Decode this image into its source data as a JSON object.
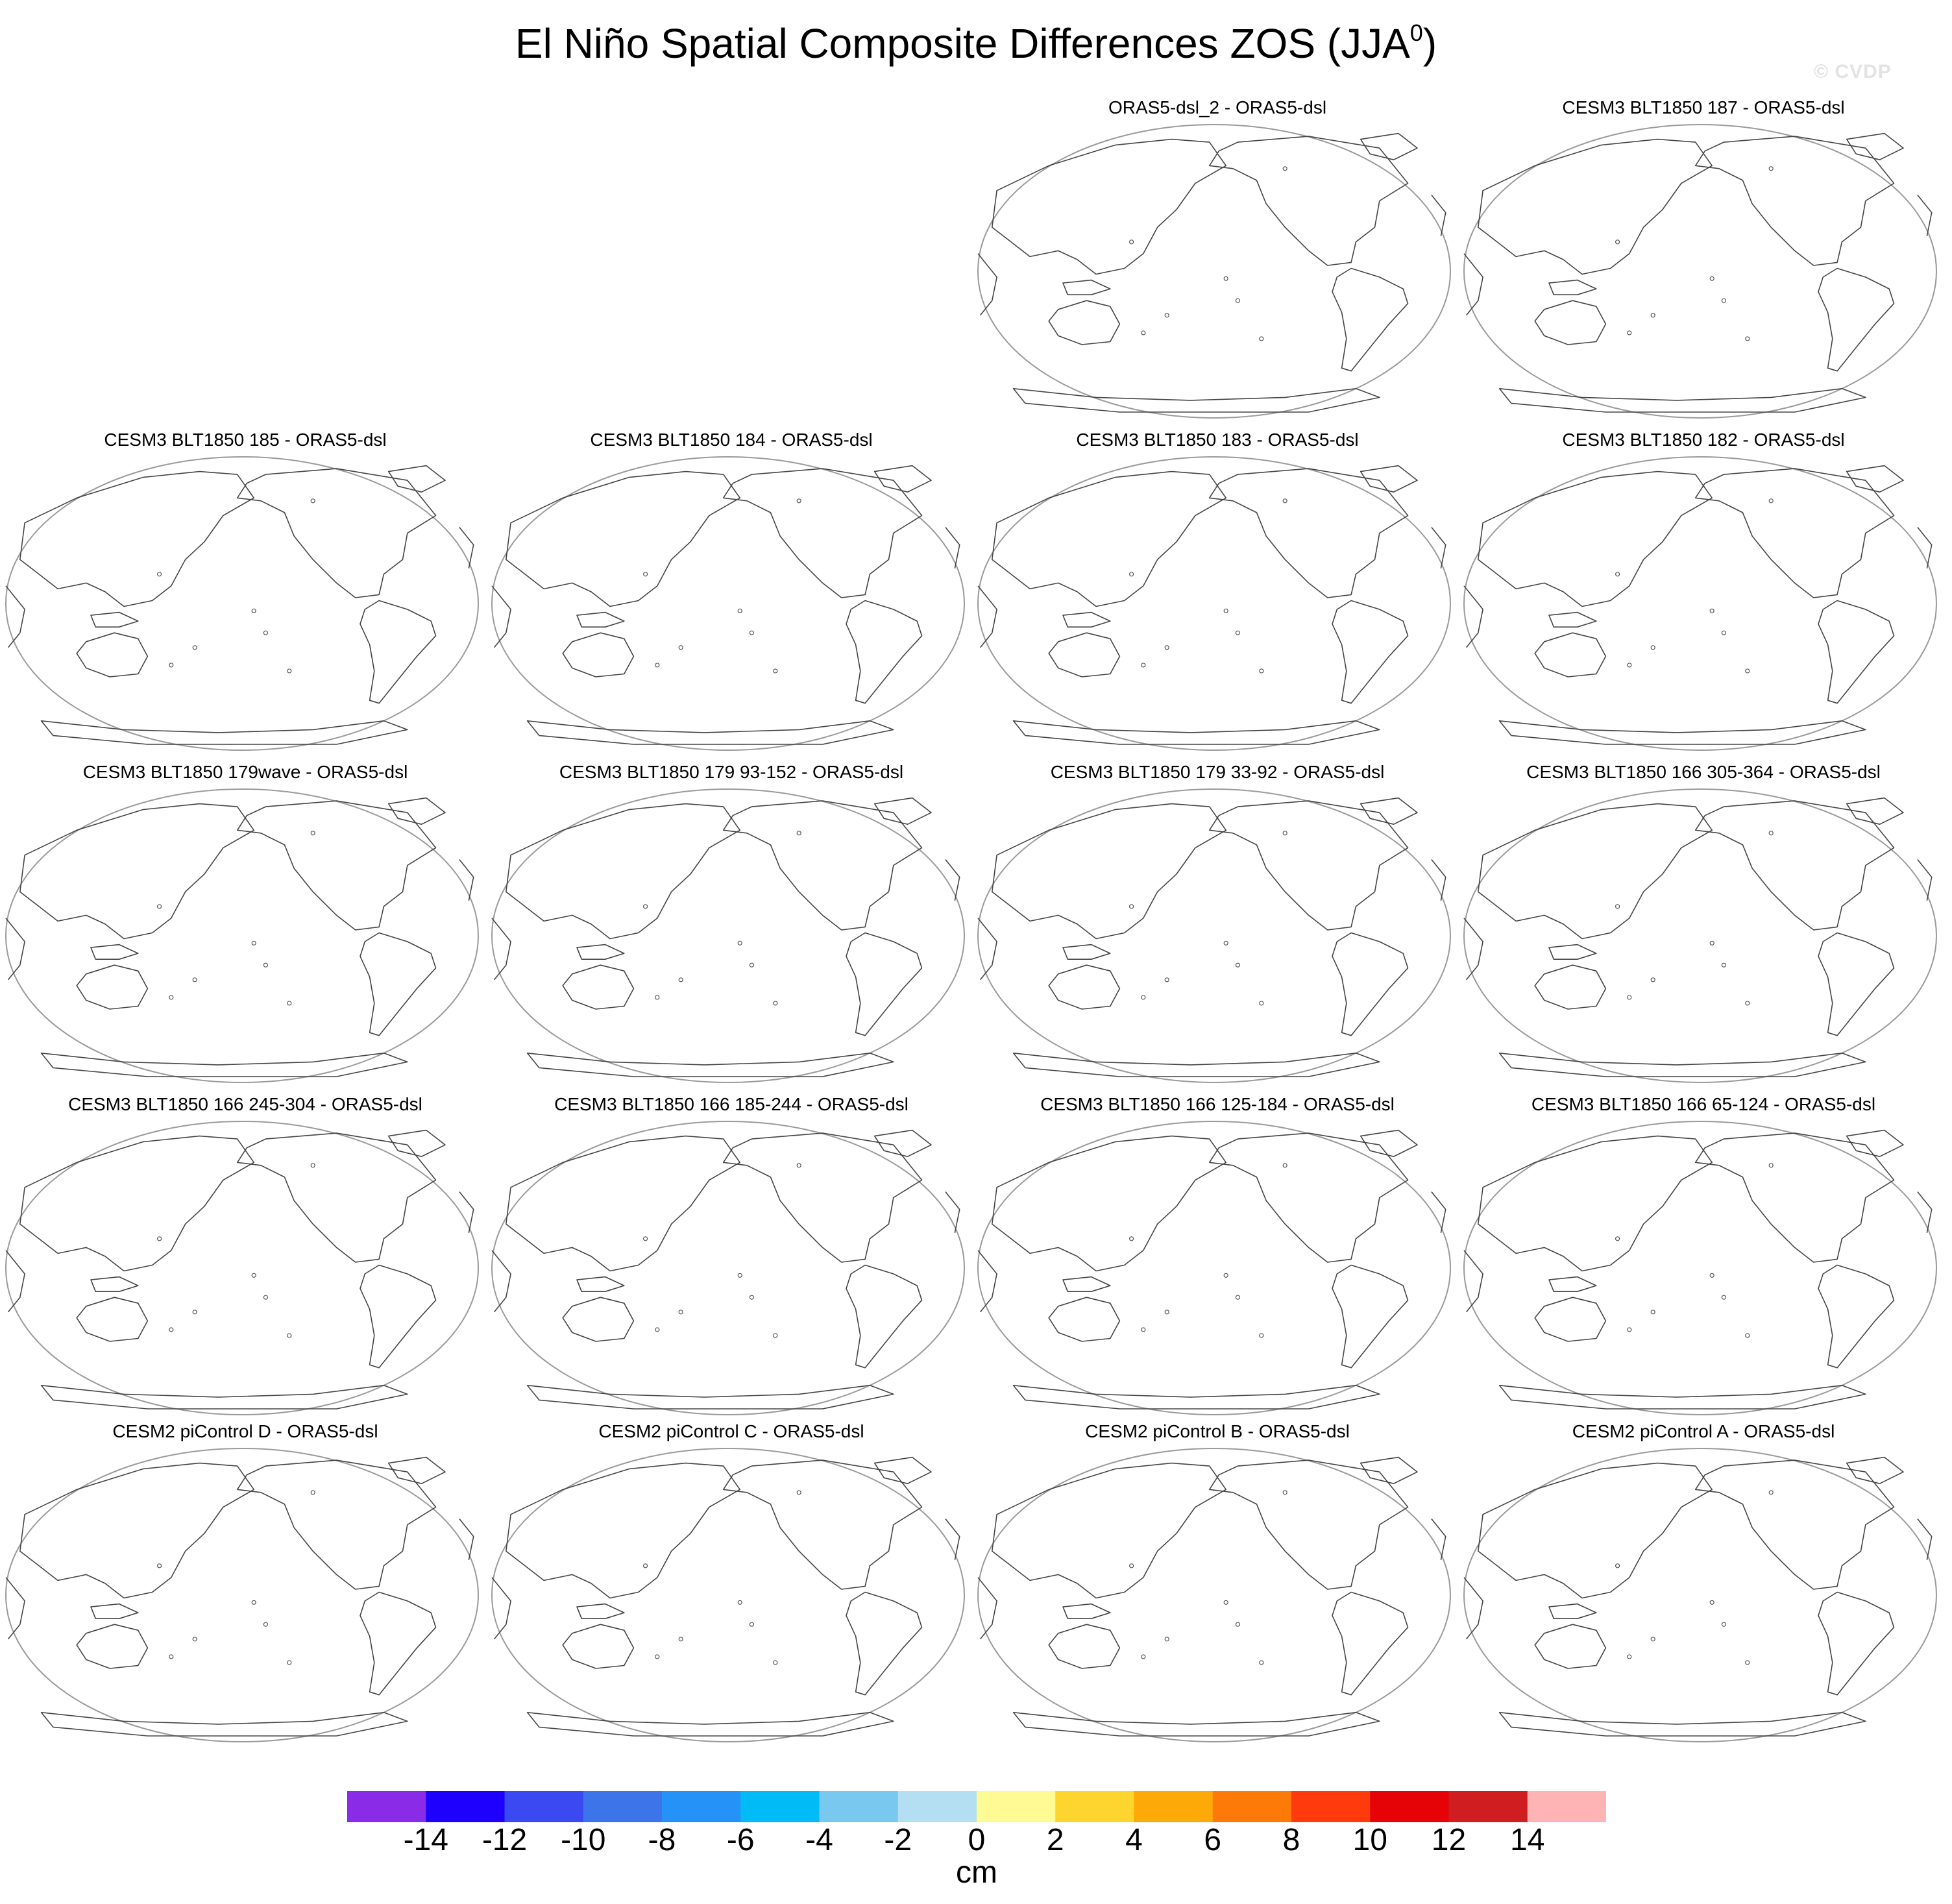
{
  "title": "El Niño Spatial Composite Differences ZOS (JJA",
  "title_superscript": "0",
  "title_close": ")",
  "watermark": "© CVDP",
  "panels": [
    {
      "title": "ORAS5-dsl_2 - ORAS5-dsl",
      "row": 0,
      "col": 2
    },
    {
      "title": "CESM3 BLT1850 187 - ORAS5-dsl",
      "row": 0,
      "col": 3
    },
    {
      "title": "CESM3 BLT1850 185 - ORAS5-dsl",
      "row": 1,
      "col": 0
    },
    {
      "title": "CESM3 BLT1850 184 - ORAS5-dsl",
      "row": 1,
      "col": 1
    },
    {
      "title": "CESM3 BLT1850 183 - ORAS5-dsl",
      "row": 1,
      "col": 2
    },
    {
      "title": "CESM3 BLT1850 182 - ORAS5-dsl",
      "row": 1,
      "col": 3
    },
    {
      "title": "CESM3 BLT1850 179wave - ORAS5-dsl",
      "row": 2,
      "col": 0
    },
    {
      "title": "CESM3 BLT1850 179 93-152 - ORAS5-dsl",
      "row": 2,
      "col": 1
    },
    {
      "title": "CESM3 BLT1850 179 33-92 - ORAS5-dsl",
      "row": 2,
      "col": 2
    },
    {
      "title": "CESM3 BLT1850 166 305-364 - ORAS5-dsl",
      "row": 2,
      "col": 3
    },
    {
      "title": "CESM3 BLT1850 166 245-304 - ORAS5-dsl",
      "row": 3,
      "col": 0
    },
    {
      "title": "CESM3 BLT1850 166 185-244 - ORAS5-dsl",
      "row": 3,
      "col": 1
    },
    {
      "title": "CESM3 BLT1850 166 125-184 - ORAS5-dsl",
      "row": 3,
      "col": 2
    },
    {
      "title": "CESM3 BLT1850 166 65-124 - ORAS5-dsl",
      "row": 3,
      "col": 3
    },
    {
      "title": "CESM2 piControl D - ORAS5-dsl",
      "row": 4,
      "col": 0
    },
    {
      "title": "CESM2 piControl C - ORAS5-dsl",
      "row": 4,
      "col": 1
    },
    {
      "title": "CESM2 piControl B - ORAS5-dsl",
      "row": 4,
      "col": 2
    },
    {
      "title": "CESM2 piControl A - ORAS5-dsl",
      "row": 4,
      "col": 3
    }
  ],
  "colorbar": {
    "units": "cm",
    "labels": [
      "-14",
      "-12",
      "-10",
      "-8",
      "-6",
      "-4",
      "-2",
      "0",
      "2",
      "4",
      "6",
      "8",
      "10",
      "12",
      "14"
    ],
    "colors": [
      "#8a2be8",
      "#1e00ff",
      "#3a49f2",
      "#3d74ea",
      "#2592f7",
      "#00bbf6",
      "#78c8f0",
      "#b4dff2",
      "#fffb94",
      "#fed42e",
      "#fda908",
      "#fe7a08",
      "#ff3a0c",
      "#e60308",
      "#d01e20",
      "#feb4b4"
    ]
  }
}
